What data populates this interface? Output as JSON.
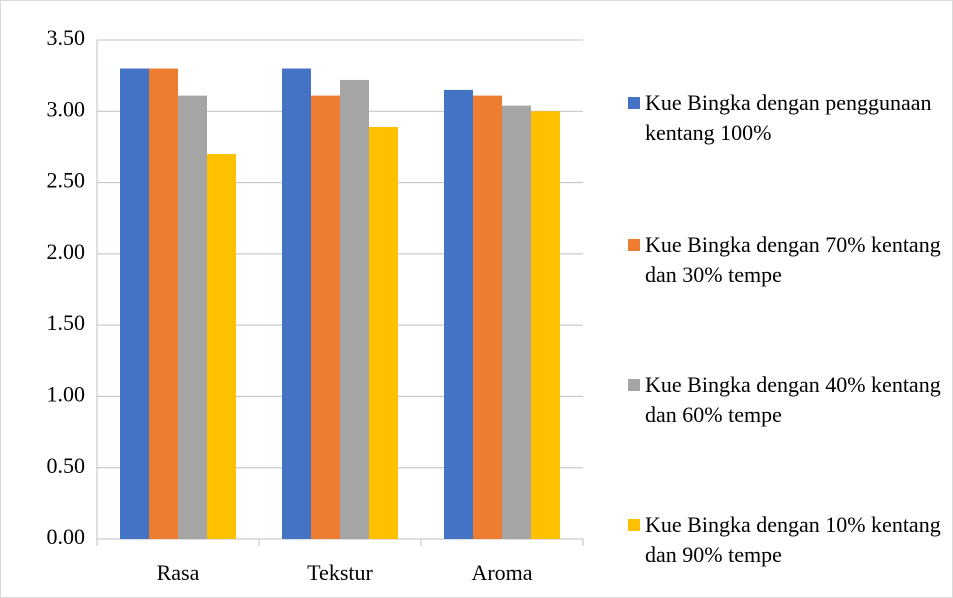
{
  "chart_data": {
    "type": "bar",
    "categories": [
      "Rasa",
      "Tekstur",
      "Aroma"
    ],
    "series": [
      {
        "name": "Kue Bingka dengan penggunaan kentang 100%",
        "color": "#4472c4",
        "values": [
          3.3,
          3.3,
          3.15
        ]
      },
      {
        "name": "Kue Bingka dengan 70% kentang dan 30% tempe",
        "color": "#ed7d31",
        "values": [
          3.3,
          3.11,
          3.11
        ]
      },
      {
        "name": "Kue Bingka dengan 40% kentang dan 60% tempe",
        "color": "#a5a5a5",
        "values": [
          3.11,
          3.22,
          3.04
        ]
      },
      {
        "name": "Kue Bingka dengan 10% kentang dan 90% tempe",
        "color": "#ffc000",
        "values": [
          2.7,
          2.89,
          3.0
        ]
      }
    ],
    "ylim": [
      0,
      3.5
    ],
    "yticks": [
      {
        "value": 0,
        "label": "0.00"
      },
      {
        "value": 0.5,
        "label": "0.50"
      },
      {
        "value": 1,
        "label": "1.00"
      },
      {
        "value": 1.5,
        "label": "1.50"
      },
      {
        "value": 2,
        "label": "2.00"
      },
      {
        "value": 2.5,
        "label": "2.50"
      },
      {
        "value": 3,
        "label": "3.00"
      },
      {
        "value": 3.5,
        "label": "3.50"
      }
    ],
    "grid": true,
    "legend": "right"
  }
}
